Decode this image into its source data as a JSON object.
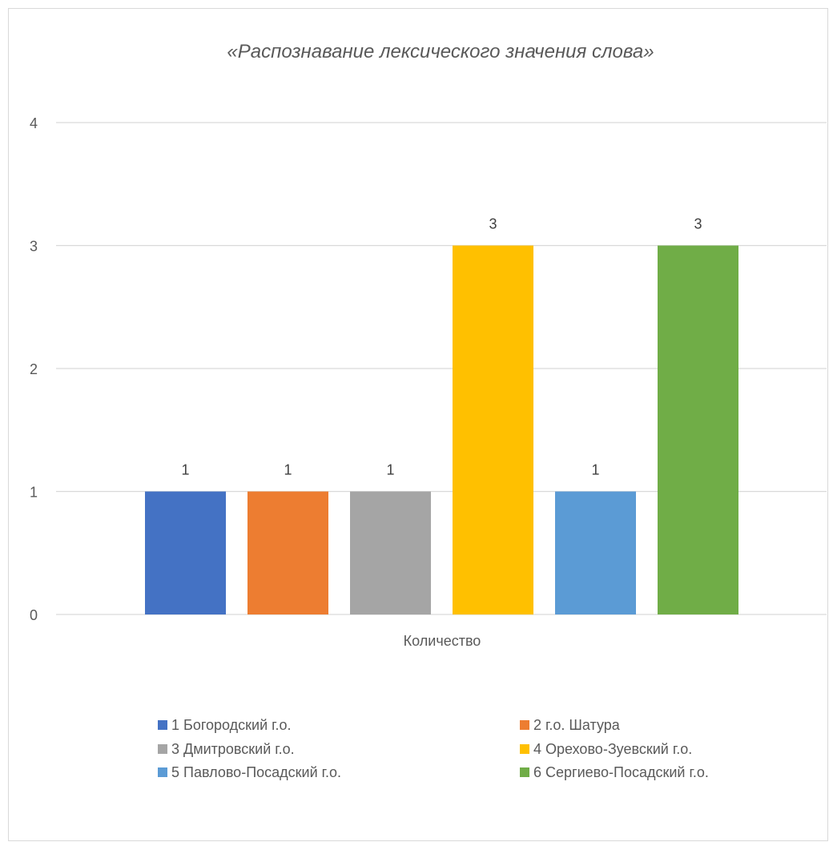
{
  "chart_data": {
    "type": "bar",
    "title": "«Распознавание лексического значения слова»",
    "xlabel": "",
    "ylabel": "",
    "categories": [
      "Количество"
    ],
    "ylim": [
      0,
      4
    ],
    "yticks": [
      "0",
      "1",
      "2",
      "3",
      "4"
    ],
    "grid": true,
    "legend_position": "bottom",
    "data_labels": true,
    "series": [
      {
        "name": "1 Богородский г.о.",
        "values": [
          1
        ],
        "color": "#4472C4"
      },
      {
        "name": "2 г.о. Шатура",
        "values": [
          1
        ],
        "color": "#ED7D31"
      },
      {
        "name": "3 Дмитровский г.о.",
        "values": [
          1
        ],
        "color": "#A5A5A5"
      },
      {
        "name": "4 Орехово-Зуевский г.о.",
        "values": [
          3
        ],
        "color": "#FFC000"
      },
      {
        "name": "5 Павлово-Посадский г.о.",
        "values": [
          1
        ],
        "color": "#5B9BD5"
      },
      {
        "name": "6 Сергиево-Посадский г.о.",
        "values": [
          3
        ],
        "color": "#70AD47"
      }
    ]
  }
}
